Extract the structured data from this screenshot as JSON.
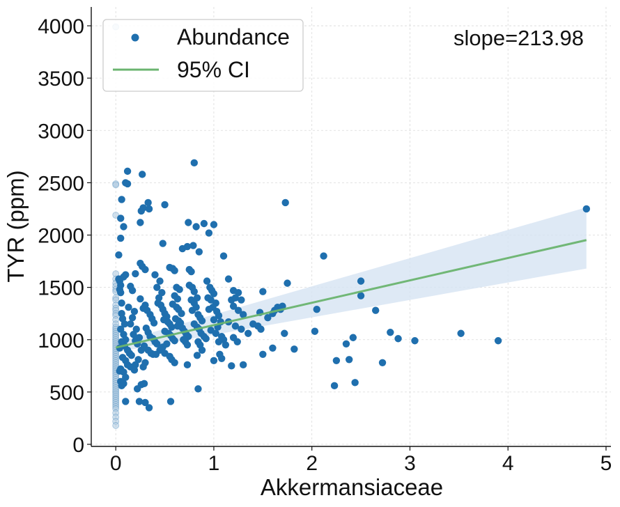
{
  "chart_data": {
    "type": "scatter",
    "title": "",
    "xlabel": "Akkermansiaceae",
    "ylabel": "TYR (ppm)",
    "xlim": [
      -0.25,
      5.05
    ],
    "ylim": [
      -20,
      4180
    ],
    "xticks": [
      "0",
      "1",
      "2",
      "3",
      "4",
      "5"
    ],
    "yticks": [
      "0",
      "500",
      "1000",
      "1500",
      "2000",
      "2500",
      "3000",
      "3500",
      "4000"
    ],
    "grid": true,
    "legend_position": "top-left",
    "legend": [
      "Abundance",
      "95% CI"
    ],
    "annotation": "slope=213.98",
    "colors": {
      "points": "#1f6fae",
      "faded_points": "#a9c6df",
      "line": "#6ab46f",
      "band": "#d6e4f2"
    },
    "regression": {
      "slope": 213.98,
      "x": [
        0,
        4.8
      ],
      "y": [
        925,
        1952
      ],
      "ci_lower": [
        880,
        1680
      ],
      "ci_upper": [
        970,
        2265
      ]
    },
    "zero_points": [
      3990,
      2490,
      2480,
      2190,
      1630,
      1580,
      1540,
      1510,
      1480,
      1460,
      1400,
      1380,
      1330,
      1300,
      1280,
      1250,
      1230,
      1190,
      1150,
      1120,
      1100,
      1080,
      1060,
      1040,
      1020,
      1000,
      980,
      960,
      940,
      920,
      900,
      880,
      860,
      840,
      820,
      800,
      780,
      760,
      740,
      720,
      700,
      680,
      660,
      640,
      620,
      600,
      580,
      560,
      540,
      520,
      500,
      480,
      460,
      440,
      420,
      400,
      380,
      360,
      340,
      300,
      260,
      220,
      180
    ],
    "points": [
      [
        0.03,
        1810
      ],
      [
        0.05,
        1450
      ],
      [
        0.05,
        1970
      ],
      [
        0.05,
        2160
      ],
      [
        0.06,
        2340
      ],
      [
        0.08,
        2080
      ],
      [
        0.1,
        2500
      ],
      [
        0.12,
        2610
      ],
      [
        0.12,
        2490
      ],
      [
        0.03,
        1580
      ],
      [
        0.08,
        1600
      ],
      [
        0.1,
        1620
      ],
      [
        0.04,
        1560
      ],
      [
        0.06,
        1350
      ],
      [
        0.05,
        1520
      ],
      [
        0.04,
        1480
      ],
      [
        0.07,
        1200
      ],
      [
        0.09,
        1150
      ],
      [
        0.05,
        1100
      ],
      [
        0.08,
        1050
      ],
      [
        0.1,
        1000
      ],
      [
        0.06,
        980
      ],
      [
        0.09,
        940
      ],
      [
        0.04,
        920
      ],
      [
        0.12,
        900
      ],
      [
        0.14,
        870
      ],
      [
        0.16,
        850
      ],
      [
        0.07,
        830
      ],
      [
        0.1,
        800
      ],
      [
        0.12,
        760
      ],
      [
        0.15,
        740
      ],
      [
        0.05,
        720
      ],
      [
        0.08,
        690
      ],
      [
        0.1,
        640
      ],
      [
        0.05,
        600
      ],
      [
        0.08,
        580
      ],
      [
        0.06,
        560
      ],
      [
        0.04,
        700
      ],
      [
        0.06,
        1250
      ],
      [
        0.15,
        1150
      ],
      [
        0.18,
        1050
      ],
      [
        0.2,
        990
      ],
      [
        0.22,
        960
      ],
      [
        0.17,
        1210
      ],
      [
        0.19,
        1270
      ],
      [
        0.13,
        1310
      ],
      [
        0.21,
        1100
      ],
      [
        0.24,
        1020
      ],
      [
        0.26,
        900
      ],
      [
        0.23,
        810
      ],
      [
        0.2,
        760
      ],
      [
        0.19,
        710
      ],
      [
        0.2,
        1630
      ],
      [
        0.17,
        1470
      ],
      [
        0.15,
        1510
      ],
      [
        0.25,
        1730
      ],
      [
        0.27,
        1700
      ],
      [
        0.3,
        1670
      ],
      [
        0.26,
        2230
      ],
      [
        0.28,
        2260
      ],
      [
        0.25,
        2120
      ],
      [
        0.27,
        2580
      ],
      [
        0.33,
        2310
      ],
      [
        0.34,
        2250
      ],
      [
        0.25,
        1390
      ],
      [
        0.28,
        1300
      ],
      [
        0.3,
        1330
      ],
      [
        0.32,
        1280
      ],
      [
        0.35,
        1240
      ],
      [
        0.37,
        1200
      ],
      [
        0.39,
        1160
      ],
      [
        0.31,
        1110
      ],
      [
        0.33,
        1070
      ],
      [
        0.35,
        1030
      ],
      [
        0.38,
        1010
      ],
      [
        0.4,
        980
      ],
      [
        0.42,
        960
      ],
      [
        0.29,
        940
      ],
      [
        0.33,
        900
      ],
      [
        0.36,
        870
      ],
      [
        0.38,
        860
      ],
      [
        0.41,
        860
      ],
      [
        0.3,
        780
      ],
      [
        0.28,
        740
      ],
      [
        0.26,
        570
      ],
      [
        0.29,
        580
      ],
      [
        0.22,
        530
      ],
      [
        0.24,
        410
      ],
      [
        0.3,
        400
      ],
      [
        0.34,
        350
      ],
      [
        0.1,
        410
      ],
      [
        0.4,
        1620
      ],
      [
        0.45,
        1560
      ],
      [
        0.42,
        1500
      ],
      [
        0.47,
        1450
      ],
      [
        0.44,
        1400
      ],
      [
        0.43,
        1350
      ],
      [
        0.46,
        1330
      ],
      [
        0.48,
        1290
      ],
      [
        0.5,
        1250
      ],
      [
        0.52,
        1220
      ],
      [
        0.49,
        1190
      ],
      [
        0.53,
        1170
      ],
      [
        0.55,
        1150
      ],
      [
        0.57,
        1120
      ],
      [
        0.5,
        1080
      ],
      [
        0.54,
        1060
      ],
      [
        0.56,
        1040
      ],
      [
        0.58,
        1010
      ],
      [
        0.6,
        990
      ],
      [
        0.52,
        960
      ],
      [
        0.48,
        930
      ],
      [
        0.45,
        900
      ],
      [
        0.5,
        870
      ],
      [
        0.55,
        840
      ],
      [
        0.57,
        810
      ],
      [
        0.6,
        780
      ],
      [
        0.48,
        1920
      ],
      [
        0.5,
        2290
      ],
      [
        0.55,
        1690
      ],
      [
        0.58,
        1680
      ],
      [
        0.6,
        1660
      ],
      [
        0.62,
        1500
      ],
      [
        0.65,
        1480
      ],
      [
        0.6,
        1420
      ],
      [
        0.63,
        1390
      ],
      [
        0.58,
        1340
      ],
      [
        0.62,
        1310
      ],
      [
        0.64,
        1290
      ],
      [
        0.67,
        1250
      ],
      [
        0.61,
        1200
      ],
      [
        0.64,
        1180
      ],
      [
        0.66,
        1160
      ],
      [
        0.63,
        1130
      ],
      [
        0.68,
        1110
      ],
      [
        0.7,
        1080
      ],
      [
        0.72,
        1050
      ],
      [
        0.74,
        1030
      ],
      [
        0.69,
        1000
      ],
      [
        0.71,
        980
      ],
      [
        0.73,
        950
      ],
      [
        0.56,
        410
      ],
      [
        0.68,
        1870
      ],
      [
        0.73,
        1890
      ],
      [
        0.75,
        1670
      ],
      [
        0.77,
        1650
      ],
      [
        0.74,
        2120
      ],
      [
        0.8,
        2690
      ],
      [
        0.82,
        2080
      ],
      [
        0.79,
        1900
      ],
      [
        0.85,
        1840
      ],
      [
        0.75,
        1520
      ],
      [
        0.78,
        1500
      ],
      [
        0.8,
        1460
      ],
      [
        0.83,
        1400
      ],
      [
        0.77,
        1380
      ],
      [
        0.8,
        1350
      ],
      [
        0.82,
        1310
      ],
      [
        0.78,
        1280
      ],
      [
        0.84,
        1240
      ],
      [
        0.86,
        1210
      ],
      [
        0.88,
        1180
      ],
      [
        0.8,
        1150
      ],
      [
        0.83,
        1120
      ],
      [
        0.85,
        1100
      ],
      [
        0.87,
        1060
      ],
      [
        0.9,
        1030
      ],
      [
        0.92,
        1010
      ],
      [
        0.84,
        980
      ],
      [
        0.86,
        950
      ],
      [
        0.88,
        900
      ],
      [
        0.83,
        850
      ],
      [
        0.73,
        760
      ],
      [
        0.84,
        530
      ],
      [
        0.9,
        2110
      ],
      [
        0.95,
        2020
      ],
      [
        1.0,
        2100
      ],
      [
        0.93,
        1560
      ],
      [
        0.96,
        1500
      ],
      [
        0.98,
        1470
      ],
      [
        1.0,
        1440
      ],
      [
        0.94,
        1400
      ],
      [
        0.97,
        1380
      ],
      [
        1.02,
        1350
      ],
      [
        0.99,
        1310
      ],
      [
        0.95,
        1290
      ],
      [
        1.03,
        1270
      ],
      [
        1.05,
        1230
      ],
      [
        1.0,
        1190
      ],
      [
        1.07,
        1170
      ],
      [
        1.04,
        1120
      ],
      [
        0.97,
        1090
      ],
      [
        1.02,
        1060
      ],
      [
        1.08,
        1030
      ],
      [
        1.1,
        1000
      ],
      [
        1.05,
        980
      ],
      [
        1.12,
        950
      ],
      [
        1.0,
        800
      ],
      [
        1.06,
        860
      ],
      [
        1.08,
        820
      ],
      [
        1.1,
        1800
      ],
      [
        1.15,
        1580
      ],
      [
        1.2,
        1470
      ],
      [
        1.25,
        1450
      ],
      [
        1.18,
        1380
      ],
      [
        1.22,
        1400
      ],
      [
        1.28,
        1380
      ],
      [
        1.2,
        1320
      ],
      [
        1.25,
        1280
      ],
      [
        1.3,
        1240
      ],
      [
        1.15,
        1170
      ],
      [
        1.22,
        1130
      ],
      [
        1.28,
        1100
      ],
      [
        1.35,
        1060
      ],
      [
        1.2,
        1020
      ],
      [
        1.24,
        980
      ],
      [
        1.18,
        750
      ],
      [
        1.3,
        760
      ],
      [
        1.4,
        1150
      ],
      [
        1.45,
        1130
      ],
      [
        1.48,
        1100
      ],
      [
        1.5,
        1460
      ],
      [
        1.47,
        1260
      ],
      [
        1.55,
        1210
      ],
      [
        1.6,
        1250
      ],
      [
        1.62,
        1280
      ],
      [
        1.65,
        1310
      ],
      [
        1.7,
        1320
      ],
      [
        1.68,
        1290
      ],
      [
        1.75,
        1540
      ],
      [
        1.72,
        1060
      ],
      [
        1.5,
        860
      ],
      [
        1.6,
        920
      ],
      [
        1.82,
        910
      ],
      [
        1.73,
        2310
      ],
      [
        2.05,
        1290
      ],
      [
        2.03,
        1080
      ],
      [
        2.12,
        1800
      ],
      [
        2.23,
        560
      ],
      [
        2.25,
        800
      ],
      [
        2.35,
        960
      ],
      [
        2.38,
        810
      ],
      [
        2.42,
        1020
      ],
      [
        2.44,
        590
      ],
      [
        2.5,
        1560
      ],
      [
        2.5,
        1420
      ],
      [
        2.65,
        1280
      ],
      [
        2.72,
        780
      ],
      [
        2.8,
        1070
      ],
      [
        2.88,
        1010
      ],
      [
        3.05,
        990
      ],
      [
        3.52,
        1060
      ],
      [
        3.9,
        990
      ],
      [
        4.8,
        2250
      ]
    ]
  }
}
